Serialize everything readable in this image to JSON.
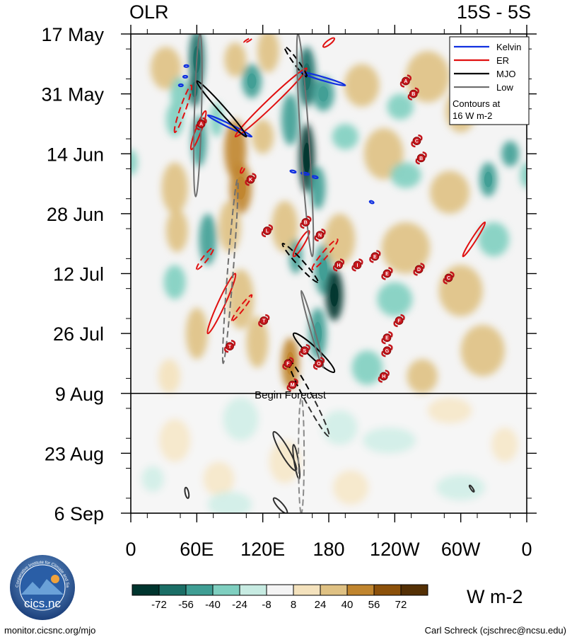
{
  "title_left": "OLR",
  "title_right": "15S - 5S",
  "units": "W m-2",
  "footer": {
    "left": "monitor.cicsnc.org/mjo",
    "right": "Carl Schreck (cjschrec@ncsu.edu)"
  },
  "logo": {
    "text": "cics.nc",
    "ring_text": "Cooperative Institute for Climate and Satellites"
  },
  "colors": {
    "kelvin": "#1030e0",
    "er": "#e01010",
    "mjo": "#000000",
    "low": "#707070",
    "cyclone_marker": "#c4161c",
    "colorbar": [
      "#00352e",
      "#1b6e66",
      "#3f9e94",
      "#7fcfc0",
      "#c7ebe2",
      "#f4f4f4",
      "#f4e2bd",
      "#dfc183",
      "#c0852e",
      "#8c510a",
      "#543005"
    ]
  },
  "chart_data": {
    "type": "heatmap",
    "title": "OLR",
    "region": "15S - 5S",
    "x_ticks": [
      "0",
      "60E",
      "120E",
      "180",
      "120W",
      "60W",
      "0"
    ],
    "x_range": [
      0,
      360
    ],
    "y_ticks": [
      "17 May",
      "31 May",
      "14 Jun",
      "28 Jun",
      "12 Jul",
      "26 Jul",
      "9 Aug",
      "23 Aug",
      "6 Sep"
    ],
    "y_range_days": [
      0,
      112
    ],
    "forecast_start": {
      "label": "Begin Forecast",
      "day": 84
    },
    "legend": {
      "items": [
        {
          "name": "Kelvin",
          "color": "#1030e0"
        },
        {
          "name": "ER",
          "color": "#e01010"
        },
        {
          "name": "MJO",
          "color": "#000000"
        },
        {
          "name": "Low",
          "color": "#707070"
        }
      ],
      "note_line1": "Contours at",
      "note_line2": "16 W m-2"
    },
    "colorbar": {
      "labels": [
        "-72",
        "-56",
        "-40",
        "-24",
        "-8",
        "8",
        "24",
        "40",
        "56",
        "72"
      ],
      "units": "W m-2"
    },
    "anomaly_blobs": [
      {
        "lon": 32,
        "day": 8,
        "value": 30,
        "rx": 14,
        "rd": 5
      },
      {
        "lon": 60,
        "day": 6,
        "value": -60,
        "rx": 7,
        "rd": 7
      },
      {
        "lon": 58,
        "day": 13,
        "value": -70,
        "rx": 6,
        "rd": 4
      },
      {
        "lon": 44,
        "day": 14,
        "value": -30,
        "rx": 8,
        "rd": 4
      },
      {
        "lon": 95,
        "day": 6,
        "value": 40,
        "rx": 10,
        "rd": 4
      },
      {
        "lon": 110,
        "day": 11,
        "value": -55,
        "rx": 9,
        "rd": 4
      },
      {
        "lon": 125,
        "day": 4,
        "value": 35,
        "rx": 10,
        "rd": 5
      },
      {
        "lon": 160,
        "day": 10,
        "value": -70,
        "rx": 8,
        "rd": 7
      },
      {
        "lon": 175,
        "day": 14,
        "value": -50,
        "rx": 10,
        "rd": 4
      },
      {
        "lon": 145,
        "day": 20,
        "value": -45,
        "rx": 8,
        "rd": 6
      },
      {
        "lon": 62,
        "day": 25,
        "value": -45,
        "rx": 7,
        "rd": 6
      },
      {
        "lon": 78,
        "day": 20,
        "value": -35,
        "rx": 6,
        "rd": 4
      },
      {
        "lon": 40,
        "day": 20,
        "value": -25,
        "rx": 8,
        "rd": 4
      },
      {
        "lon": 210,
        "day": 12,
        "value": 30,
        "rx": 16,
        "rd": 5
      },
      {
        "lon": 245,
        "day": 17,
        "value": -30,
        "rx": 12,
        "rd": 3
      },
      {
        "lon": 270,
        "day": 10,
        "value": 30,
        "rx": 20,
        "rd": 6
      },
      {
        "lon": 300,
        "day": 18,
        "value": 25,
        "rx": 14,
        "rd": 5
      },
      {
        "lon": 330,
        "day": 8,
        "value": 25,
        "rx": 15,
        "rd": 6
      },
      {
        "lon": 95,
        "day": 27,
        "value": 45,
        "rx": 10,
        "rd": 7
      },
      {
        "lon": 100,
        "day": 36,
        "value": 55,
        "rx": 10,
        "rd": 6
      },
      {
        "lon": 90,
        "day": 45,
        "value": 35,
        "rx": 10,
        "rd": 6
      },
      {
        "lon": 160,
        "day": 29,
        "value": -75,
        "rx": 7,
        "rd": 8
      },
      {
        "lon": 170,
        "day": 36,
        "value": -45,
        "rx": 7,
        "rd": 5
      },
      {
        "lon": 0,
        "day": 30,
        "value": -30,
        "rx": 6,
        "rd": 3
      },
      {
        "lon": 120,
        "day": 24,
        "value": 30,
        "rx": 10,
        "rd": 4
      },
      {
        "lon": 195,
        "day": 24,
        "value": -30,
        "rx": 12,
        "rd": 3
      },
      {
        "lon": 230,
        "day": 28,
        "value": 30,
        "rx": 18,
        "rd": 6
      },
      {
        "lon": 250,
        "day": 33,
        "value": -25,
        "rx": 14,
        "rd": 3
      },
      {
        "lon": 290,
        "day": 37,
        "value": 25,
        "rx": 18,
        "rd": 5
      },
      {
        "lon": 325,
        "day": 34,
        "value": -55,
        "rx": 8,
        "rd": 4
      },
      {
        "lon": 345,
        "day": 28,
        "value": -40,
        "rx": 8,
        "rd": 3
      },
      {
        "lon": 360,
        "day": 33,
        "value": -35,
        "rx": 6,
        "rd": 3
      },
      {
        "lon": 40,
        "day": 36,
        "value": 30,
        "rx": 12,
        "rd": 6
      },
      {
        "lon": 70,
        "day": 48,
        "value": -40,
        "rx": 8,
        "rd": 6
      },
      {
        "lon": 42,
        "day": 46,
        "value": 25,
        "rx": 10,
        "rd": 5
      },
      {
        "lon": 140,
        "day": 45,
        "value": 40,
        "rx": 12,
        "rd": 6
      },
      {
        "lon": 150,
        "day": 52,
        "value": -40,
        "rx": 6,
        "rd": 4
      },
      {
        "lon": 175,
        "day": 55,
        "value": -55,
        "rx": 8,
        "rd": 6
      },
      {
        "lon": 185,
        "day": 61,
        "value": -80,
        "rx": 8,
        "rd": 6
      },
      {
        "lon": 170,
        "day": 70,
        "value": -50,
        "rx": 8,
        "rd": 6
      },
      {
        "lon": 145,
        "day": 77,
        "value": 55,
        "rx": 8,
        "rd": 6
      },
      {
        "lon": 190,
        "day": 48,
        "value": 30,
        "rx": 14,
        "rd": 6
      },
      {
        "lon": 100,
        "day": 62,
        "value": 35,
        "rx": 12,
        "rd": 7
      },
      {
        "lon": 115,
        "day": 72,
        "value": 30,
        "rx": 10,
        "rd": 6
      },
      {
        "lon": 60,
        "day": 70,
        "value": 25,
        "rx": 10,
        "rd": 6
      },
      {
        "lon": 40,
        "day": 58,
        "value": -30,
        "rx": 10,
        "rd": 4
      },
      {
        "lon": 250,
        "day": 50,
        "value": 30,
        "rx": 22,
        "rd": 6
      },
      {
        "lon": 240,
        "day": 62,
        "value": -30,
        "rx": 16,
        "rd": 4
      },
      {
        "lon": 300,
        "day": 60,
        "value": 30,
        "rx": 20,
        "rd": 6
      },
      {
        "lon": 330,
        "day": 48,
        "value": -30,
        "rx": 14,
        "rd": 4
      },
      {
        "lon": 320,
        "day": 74,
        "value": 25,
        "rx": 20,
        "rd": 6
      },
      {
        "lon": 215,
        "day": 78,
        "value": -25,
        "rx": 14,
        "rd": 4
      },
      {
        "lon": 265,
        "day": 80,
        "value": 25,
        "rx": 14,
        "rd": 4
      },
      {
        "lon": 35,
        "day": 80,
        "value": 20,
        "rx": 10,
        "rd": 4
      },
      {
        "lon": 40,
        "day": 95,
        "value": 20,
        "rx": 14,
        "rd": 5
      },
      {
        "lon": 100,
        "day": 90,
        "value": -20,
        "rx": 16,
        "rd": 5
      },
      {
        "lon": 140,
        "day": 100,
        "value": 20,
        "rx": 14,
        "rd": 5
      },
      {
        "lon": 190,
        "day": 92,
        "value": -20,
        "rx": 16,
        "rd": 4
      },
      {
        "lon": 235,
        "day": 95,
        "value": -20,
        "rx": 24,
        "rd": 3
      },
      {
        "lon": 290,
        "day": 88,
        "value": 18,
        "rx": 20,
        "rd": 3
      },
      {
        "lon": 80,
        "day": 104,
        "value": 20,
        "rx": 14,
        "rd": 4
      },
      {
        "lon": 90,
        "day": 110,
        "value": -20,
        "rx": 20,
        "rd": 3
      },
      {
        "lon": 20,
        "day": 104,
        "value": -18,
        "rx": 10,
        "rd": 3
      },
      {
        "lon": 300,
        "day": 106,
        "value": -20,
        "rx": 22,
        "rd": 3
      },
      {
        "lon": 200,
        "day": 106,
        "value": 18,
        "rx": 16,
        "rd": 4
      },
      {
        "lon": 340,
        "day": 96,
        "value": 18,
        "rx": 12,
        "rd": 4
      }
    ],
    "filtered_contours": [
      {
        "wave": "Kelvin",
        "style": "solid",
        "path": [
          [
            70,
            19
          ],
          [
            110,
            24
          ]
        ],
        "width": 5
      },
      {
        "wave": "Kelvin",
        "style": "solid",
        "path": [
          [
            155,
            9
          ],
          [
            195,
            12
          ]
        ],
        "width": 5
      },
      {
        "wave": "Kelvin",
        "style": "solid",
        "path": [
          [
            145,
            32
          ],
          [
            150,
            32.3
          ]
        ],
        "width": 3
      },
      {
        "wave": "Kelvin",
        "style": "solid",
        "path": [
          [
            155,
            32.5
          ],
          [
            162,
            32.8
          ]
        ],
        "width": 3
      },
      {
        "wave": "Kelvin",
        "style": "solid",
        "path": [
          [
            165,
            33.3
          ],
          [
            170,
            33.6
          ]
        ],
        "width": 3
      },
      {
        "wave": "Kelvin",
        "style": "solid",
        "path": [
          [
            49,
            7.5
          ],
          [
            52,
            7.5
          ]
        ],
        "width": 3
      },
      {
        "wave": "Kelvin",
        "style": "solid",
        "path": [
          [
            48,
            10
          ],
          [
            51,
            10
          ]
        ],
        "width": 3
      },
      {
        "wave": "Kelvin",
        "style": "solid",
        "path": [
          [
            44,
            12
          ],
          [
            47,
            12
          ]
        ],
        "width": 3
      },
      {
        "wave": "Kelvin",
        "style": "solid",
        "path": [
          [
            218,
            39.2
          ],
          [
            220,
            39.4
          ]
        ],
        "width": 3
      },
      {
        "wave": "ER",
        "style": "solid",
        "path": [
          [
            160,
            8
          ],
          [
            95,
            24
          ]
        ],
        "width": 11
      },
      {
        "wave": "ER",
        "style": "solid",
        "path": [
          [
            68,
            18
          ],
          [
            55,
            27
          ]
        ],
        "width": 8
      },
      {
        "wave": "ER",
        "style": "solid",
        "path": [
          [
            162,
            46
          ],
          [
            148,
            52
          ]
        ],
        "width": 8
      },
      {
        "wave": "ER",
        "style": "solid",
        "path": [
          [
            95,
            56
          ],
          [
            70,
            70
          ]
        ],
        "width": 10
      },
      {
        "wave": "ER",
        "style": "solid",
        "path": [
          [
            185,
            1
          ],
          [
            175,
            3
          ]
        ],
        "width": 6
      },
      {
        "wave": "ER",
        "style": "solid",
        "path": [
          [
            322,
            44
          ],
          [
            302,
            52
          ]
        ],
        "width": 6
      },
      {
        "wave": "ER",
        "style": "dashed",
        "path": [
          [
            55,
            12
          ],
          [
            40,
            23
          ]
        ],
        "width": 8
      },
      {
        "wave": "ER",
        "style": "dashed",
        "path": [
          [
            75,
            50
          ],
          [
            60,
            55
          ]
        ],
        "width": 7
      },
      {
        "wave": "ER",
        "style": "dashed",
        "path": [
          [
            110,
            61
          ],
          [
            92,
            67
          ]
        ],
        "width": 6
      },
      {
        "wave": "ER",
        "style": "dashed",
        "path": [
          [
            188,
            48
          ],
          [
            165,
            55
          ]
        ],
        "width": 8
      },
      {
        "wave": "ER",
        "style": "dashed",
        "path": [
          [
            103,
            31
          ],
          [
            100,
            32.5
          ]
        ],
        "width": 4
      },
      {
        "wave": "ER",
        "style": "dashed",
        "path": [
          [
            110,
            1
          ],
          [
            103,
            2
          ]
        ],
        "width": 3
      },
      {
        "wave": "MJO",
        "style": "solid",
        "path": [
          [
            60,
            11
          ],
          [
            105,
            24
          ]
        ],
        "width": 9
      },
      {
        "wave": "MJO",
        "style": "solid",
        "path": [
          [
            148,
            70
          ],
          [
            185,
            79
          ]
        ],
        "width": 14
      },
      {
        "wave": "MJO",
        "style": "solid",
        "path": [
          [
            130,
            93
          ],
          [
            150,
            102
          ]
        ],
        "width": 12
      },
      {
        "wave": "MJO",
        "style": "solid",
        "path": [
          [
            148,
            96
          ],
          [
            153,
            104
          ]
        ],
        "width": 6
      },
      {
        "wave": "MJO",
        "style": "solid",
        "path": [
          [
            50,
            106
          ],
          [
            52,
            108.5
          ]
        ],
        "width": 5
      },
      {
        "wave": "MJO",
        "style": "solid",
        "path": [
          [
            130,
            108.5
          ],
          [
            142,
            112
          ]
        ],
        "width": 8
      },
      {
        "wave": "MJO",
        "style": "solid",
        "path": [
          [
            308,
            105.5
          ],
          [
            312,
            107
          ]
        ],
        "width": 3
      },
      {
        "wave": "MJO",
        "style": "dashed",
        "path": [
          [
            140,
            3
          ],
          [
            160,
            10
          ]
        ],
        "width": 7
      },
      {
        "wave": "MJO",
        "style": "dashed",
        "path": [
          [
            138,
            49
          ],
          [
            170,
            58
          ]
        ],
        "width": 9
      },
      {
        "wave": "MJO",
        "style": "dashed",
        "path": [
          [
            143,
            76
          ],
          [
            180,
            94
          ]
        ],
        "width": 12
      },
      {
        "wave": "Low",
        "style": "solid",
        "path": [
          [
            63,
            0
          ],
          [
            59,
            38
          ]
        ],
        "width": 10
      },
      {
        "wave": "Low",
        "style": "solid",
        "path": [
          [
            152,
            0
          ],
          [
            165,
            52
          ]
        ],
        "width": 12
      },
      {
        "wave": "Low",
        "style": "solid",
        "path": [
          [
            155,
            60
          ],
          [
            175,
            78
          ]
        ],
        "width": 6
      },
      {
        "wave": "Low",
        "style": "dashed",
        "path": [
          [
            97,
            34
          ],
          [
            84,
            77
          ]
        ],
        "width": 8
      },
      {
        "wave": "Low",
        "style": "dashed",
        "path": [
          [
            155,
            85
          ],
          [
            155,
            112
          ]
        ],
        "width": 8
      }
    ],
    "cyclone_tracks": [
      {
        "label": "A",
        "lon": 64,
        "day": 21
      },
      {
        "label": "K",
        "lon": 109,
        "day": 34
      },
      {
        "label": "L",
        "lon": 124,
        "day": 46
      },
      {
        "label": "B",
        "lon": 159,
        "day": 44
      },
      {
        "label": "N",
        "lon": 172,
        "day": 47
      },
      {
        "label": "H",
        "lon": 189,
        "day": 54
      },
      {
        "label": "I",
        "lon": 206,
        "day": 54
      },
      {
        "label": "E",
        "lon": 222,
        "day": 52
      },
      {
        "label": "E",
        "lon": 233,
        "day": 56
      },
      {
        "label": "D",
        "lon": 262,
        "day": 55
      },
      {
        "label": "C",
        "lon": 289,
        "day": 57
      },
      {
        "label": "T",
        "lon": 121,
        "day": 67
      },
      {
        "label": "T",
        "lon": 90,
        "day": 73
      },
      {
        "label": "F",
        "lon": 244,
        "day": 67
      },
      {
        "label": "S",
        "lon": 158,
        "day": 74
      },
      {
        "label": "E",
        "lon": 233,
        "day": 71
      },
      {
        "label": "G",
        "lon": 233,
        "day": 74
      },
      {
        "label": "F",
        "lon": 143,
        "day": 77
      },
      {
        "label": "O",
        "lon": 171,
        "day": 77
      },
      {
        "label": "M",
        "lon": 147,
        "day": 82
      },
      {
        "label": "H",
        "lon": 230,
        "day": 80
      },
      {
        "label": "A",
        "lon": 250,
        "day": 11
      },
      {
        "label": "B",
        "lon": 257,
        "day": 14
      },
      {
        "label": "C",
        "lon": 260,
        "day": 25
      },
      {
        "label": "B",
        "lon": 264,
        "day": 29
      }
    ]
  }
}
